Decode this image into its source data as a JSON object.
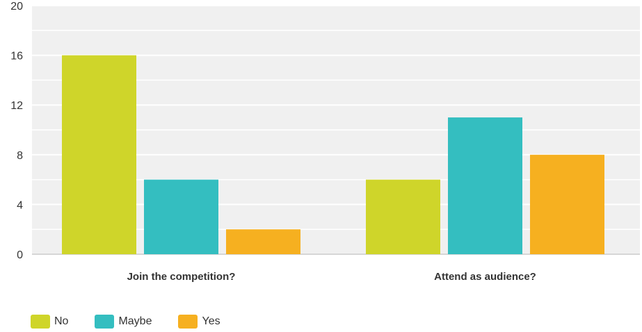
{
  "chart_data": {
    "type": "bar",
    "title": "",
    "xlabel": "",
    "ylabel": "",
    "categories": [
      "Join the competition?",
      "Attend as audience?"
    ],
    "series": [
      {
        "name": "No",
        "values": [
          16,
          6
        ],
        "color": "#cfd52a"
      },
      {
        "name": "Maybe",
        "values": [
          6,
          11
        ],
        "color": "#34bec0"
      },
      {
        "name": "Yes",
        "values": [
          2,
          8
        ],
        "color": "#f6b020"
      }
    ],
    "ylim": [
      0,
      20
    ],
    "yticks": [
      0,
      4,
      8,
      12,
      16,
      20
    ],
    "grid": true,
    "legend_position": "bottom-left"
  }
}
